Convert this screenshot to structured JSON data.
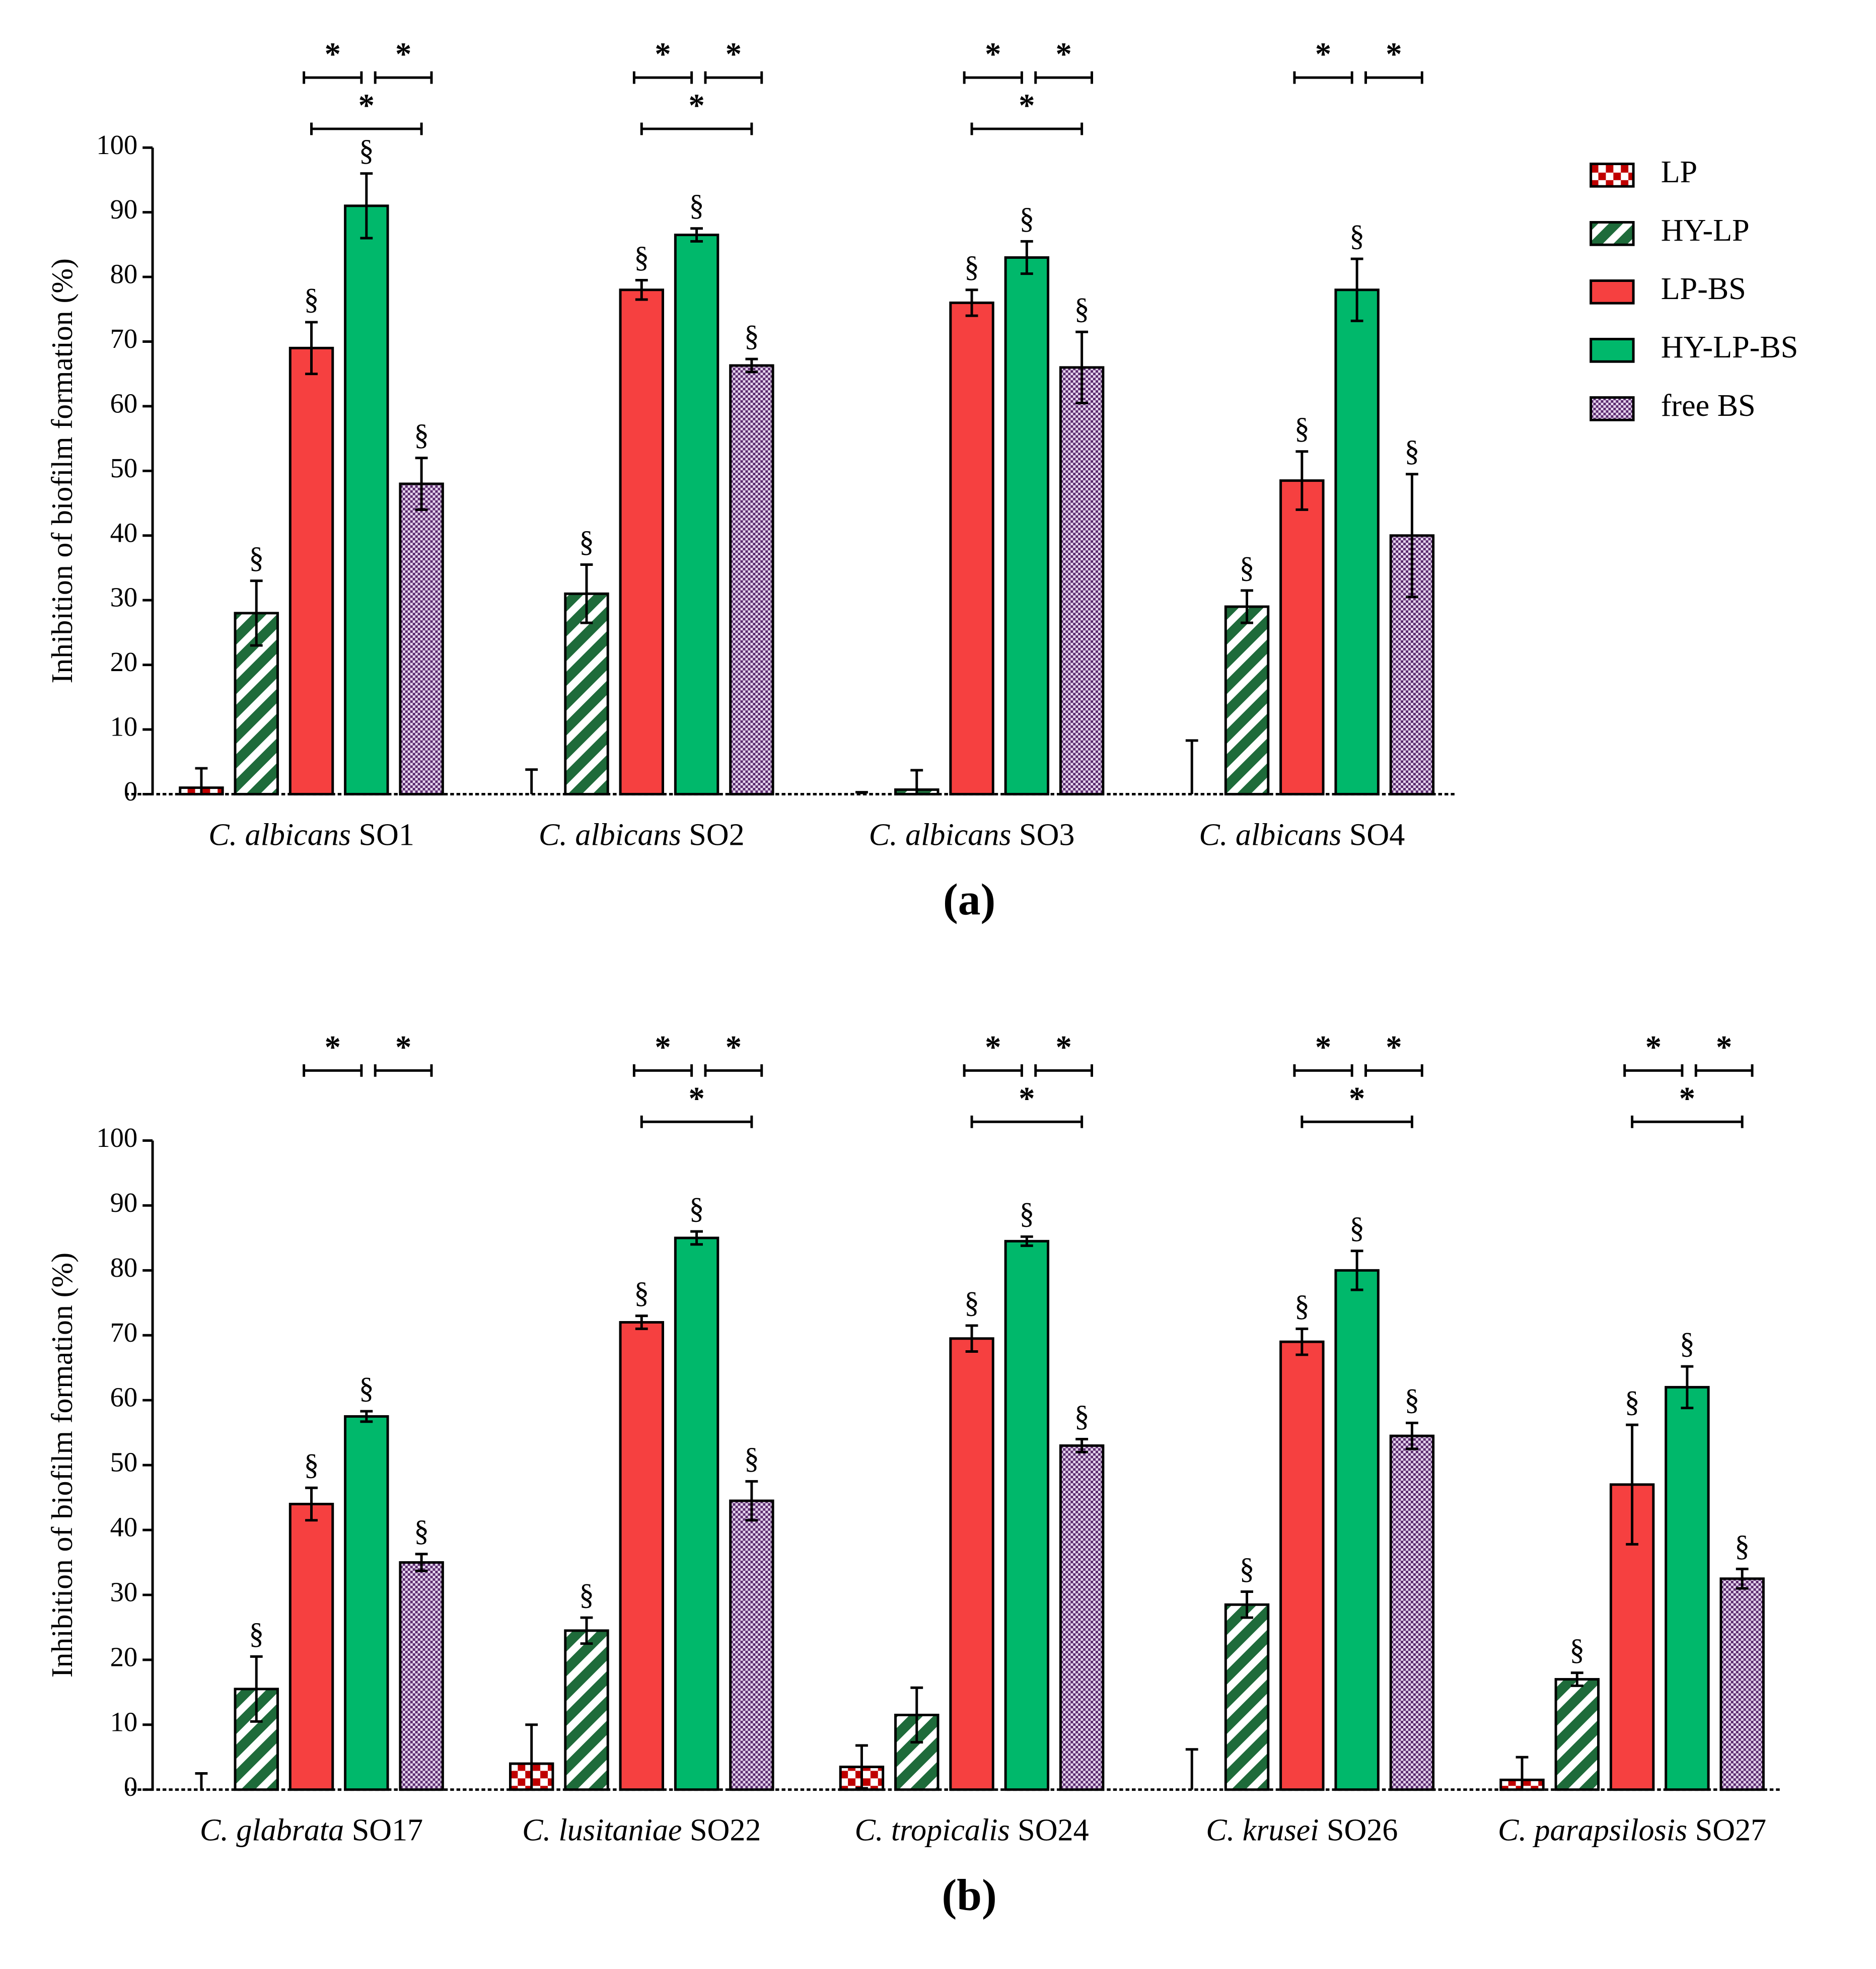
{
  "chart_data": [
    {
      "type": "bar",
      "title": "(a)",
      "ylabel": "Inhibition of biofilm formation (%)",
      "categories": [
        "C. albicans SO1",
        "C. albicans SO2",
        "C. albicans SO3",
        "C. albicans SO4"
      ],
      "ylim": [
        0,
        100
      ],
      "yticks": [
        0,
        10,
        20,
        30,
        40,
        50,
        60,
        70,
        80,
        90,
        100
      ],
      "legend": "right",
      "series": [
        {
          "name": "LP",
          "color": "#c00000",
          "pattern": "checker",
          "values": [
            1,
            0,
            0,
            0
          ],
          "errors": [
            3,
            3.8,
            0.3,
            8.3
          ],
          "symbols": [
            null,
            null,
            null,
            null
          ]
        },
        {
          "name": "HY-LP",
          "color": "#1e6b3a",
          "pattern": "stripes",
          "values": [
            28,
            31,
            0.7,
            29
          ],
          "errors": [
            5,
            4.5,
            3,
            2.5
          ],
          "symbols": [
            "§",
            "§",
            null,
            "§"
          ]
        },
        {
          "name": "LP-BS",
          "color": "#f64040",
          "pattern": null,
          "values": [
            69,
            78,
            76,
            48.5
          ],
          "errors": [
            4,
            1.5,
            2,
            4.5
          ],
          "symbols": [
            "§",
            "§",
            "§",
            "§"
          ]
        },
        {
          "name": "HY-LP-BS",
          "color": "#00b86b",
          "pattern": null,
          "values": [
            91,
            86.5,
            83,
            78
          ],
          "errors": [
            5,
            1,
            2.5,
            4.8
          ],
          "symbols": [
            "§",
            "§",
            "§",
            "§"
          ]
        },
        {
          "name": "free BS",
          "color": "#5b2a6e",
          "pattern": "dots",
          "values": [
            48,
            66.3,
            66,
            40
          ],
          "errors": [
            4,
            1,
            5.5,
            9.5
          ],
          "symbols": [
            "§",
            "§",
            "§",
            "§"
          ]
        }
      ],
      "comparisons": [
        {
          "category": "C. albicans SO1",
          "between": [
            "LP-BS",
            "HY-LP-BS"
          ],
          "label": "*"
        },
        {
          "category": "C. albicans SO1",
          "between": [
            "HY-LP-BS",
            "free BS"
          ],
          "label": "*"
        },
        {
          "category": "C. albicans SO1",
          "between": [
            "LP-BS",
            "free BS"
          ],
          "label": "*"
        },
        {
          "category": "C. albicans SO2",
          "between": [
            "LP-BS",
            "HY-LP-BS"
          ],
          "label": "*"
        },
        {
          "category": "C. albicans SO2",
          "between": [
            "HY-LP-BS",
            "free BS"
          ],
          "label": "*"
        },
        {
          "category": "C. albicans SO2",
          "between": [
            "LP-BS",
            "free BS"
          ],
          "label": "*"
        },
        {
          "category": "C. albicans SO3",
          "between": [
            "LP-BS",
            "HY-LP-BS"
          ],
          "label": "*"
        },
        {
          "category": "C. albicans SO3",
          "between": [
            "HY-LP-BS",
            "free BS"
          ],
          "label": "*"
        },
        {
          "category": "C. albicans SO3",
          "between": [
            "LP-BS",
            "free BS"
          ],
          "label": "*"
        },
        {
          "category": "C. albicans SO4",
          "between": [
            "LP-BS",
            "HY-LP-BS"
          ],
          "label": "*"
        },
        {
          "category": "C. albicans SO4",
          "between": [
            "HY-LP-BS",
            "free BS"
          ],
          "label": "*"
        }
      ]
    },
    {
      "type": "bar",
      "title": "(b)",
      "ylabel": "Inhibition of biofilm formation (%)",
      "categories": [
        "C. glabrata SO17",
        "C. lusitaniae SO22",
        "C. tropicalis SO24",
        "C. krusei SO26",
        "C. parapsilosis SO27"
      ],
      "ylim": [
        0,
        100
      ],
      "yticks": [
        0,
        10,
        20,
        30,
        40,
        50,
        60,
        70,
        80,
        90,
        100
      ],
      "series": [
        {
          "name": "LP",
          "color": "#c00000",
          "pattern": "checker",
          "values": [
            0,
            4,
            3.5,
            0,
            1.5
          ],
          "errors": [
            2.5,
            6,
            3.3,
            6.2,
            3.5
          ],
          "symbols": [
            null,
            null,
            null,
            null,
            null
          ]
        },
        {
          "name": "HY-LP",
          "color": "#1e6b3a",
          "pattern": "stripes",
          "values": [
            15.5,
            24.5,
            11.5,
            28.5,
            17
          ],
          "errors": [
            5,
            2,
            4.2,
            2,
            1
          ],
          "symbols": [
            "§",
            "§",
            null,
            "§",
            "§"
          ]
        },
        {
          "name": "LP-BS",
          "color": "#f64040",
          "pattern": null,
          "values": [
            44,
            72,
            69.5,
            69,
            47
          ],
          "errors": [
            2.5,
            1,
            2,
            2,
            9.2
          ],
          "symbols": [
            "§",
            "§",
            "§",
            "§",
            "§"
          ]
        },
        {
          "name": "HY-LP-BS",
          "color": "#00b86b",
          "pattern": null,
          "values": [
            57.5,
            85,
            84.5,
            80,
            62
          ],
          "errors": [
            0.8,
            1,
            0.7,
            3,
            3.2
          ],
          "symbols": [
            "§",
            "§",
            "§",
            "§",
            "§"
          ]
        },
        {
          "name": "free BS",
          "color": "#5b2a6e",
          "pattern": "dots",
          "values": [
            35,
            44.5,
            53,
            54.5,
            32.5
          ],
          "errors": [
            1.3,
            3,
            1,
            2,
            1.5
          ],
          "symbols": [
            "§",
            "§",
            "§",
            "§",
            "§"
          ]
        }
      ],
      "comparisons": [
        {
          "category": "C. glabrata SO17",
          "between": [
            "LP-BS",
            "HY-LP-BS"
          ],
          "label": "*"
        },
        {
          "category": "C. glabrata SO17",
          "between": [
            "HY-LP-BS",
            "free BS"
          ],
          "label": "*"
        },
        {
          "category": "C. lusitaniae SO22",
          "between": [
            "LP-BS",
            "HY-LP-BS"
          ],
          "label": "*"
        },
        {
          "category": "C. lusitaniae SO22",
          "between": [
            "HY-LP-BS",
            "free BS"
          ],
          "label": "*"
        },
        {
          "category": "C. lusitaniae SO22",
          "between": [
            "LP-BS",
            "free BS"
          ],
          "label": "*"
        },
        {
          "category": "C. tropicalis SO24",
          "between": [
            "LP-BS",
            "HY-LP-BS"
          ],
          "label": "*"
        },
        {
          "category": "C. tropicalis SO24",
          "between": [
            "HY-LP-BS",
            "free BS"
          ],
          "label": "*"
        },
        {
          "category": "C. tropicalis SO24",
          "between": [
            "LP-BS",
            "free BS"
          ],
          "label": "*"
        },
        {
          "category": "C. krusei SO26",
          "between": [
            "LP-BS",
            "HY-LP-BS"
          ],
          "label": "*"
        },
        {
          "category": "C. krusei SO26",
          "between": [
            "HY-LP-BS",
            "free BS"
          ],
          "label": "*"
        },
        {
          "category": "C. krusei SO26",
          "between": [
            "LP-BS",
            "free BS"
          ],
          "label": "*"
        },
        {
          "category": "C. parapsilosis SO27",
          "between": [
            "LP-BS",
            "HY-LP-BS"
          ],
          "label": "*"
        },
        {
          "category": "C. parapsilosis SO27",
          "between": [
            "HY-LP-BS",
            "free BS"
          ],
          "label": "*"
        },
        {
          "category": "C. parapsilosis SO27",
          "between": [
            "LP-BS",
            "free BS"
          ],
          "label": "*"
        }
      ]
    }
  ]
}
